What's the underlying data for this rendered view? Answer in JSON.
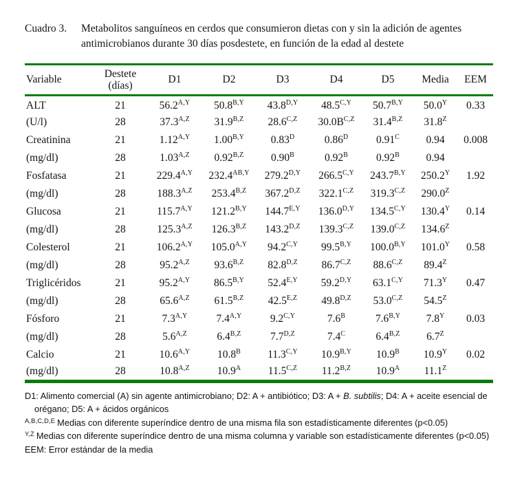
{
  "colors": {
    "rule_green": "#0b7d0b"
  },
  "title": {
    "label": "Cuadro 3.",
    "text": "Metabolitos sanguíneos en cerdos que consumieron dietas con y sin la adición de agentes antimicrobianos durante 30 días posdestete, en función de la edad al destete"
  },
  "table": {
    "headers": [
      "Variable",
      "Destete\n(días)",
      "D1",
      "D2",
      "D3",
      "D4",
      "D5",
      "Media",
      "EEM"
    ],
    "groups": [
      {
        "variable": "ALT",
        "unit": "(U/l)",
        "lines": [
          {
            "destete": "21",
            "cells": [
              {
                "v": "56.2",
                "s": "A,Y"
              },
              {
                "v": "50.8",
                "s": "B,Y"
              },
              {
                "v": "43.8",
                "s": "D,Y"
              },
              {
                "v": "48.5",
                "s": "C,Y"
              },
              {
                "v": "50.7",
                "s": "B,Y"
              },
              {
                "v": "50.0",
                "s": "Y"
              }
            ],
            "eem": "0.33"
          },
          {
            "destete": "28",
            "cells": [
              {
                "v": "37.3",
                "s": "A,Z"
              },
              {
                "v": "31.9",
                "s": "B,Z"
              },
              {
                "v": "28.6",
                "s": "C,Z"
              },
              {
                "v": "30.0B",
                "s": "C,Z"
              },
              {
                "v": "31.4",
                "s": "B,Z"
              },
              {
                "v": "31.8",
                "s": "Z"
              }
            ],
            "eem": ""
          }
        ]
      },
      {
        "variable": "Creatinina",
        "unit": "(mg/dl)",
        "lines": [
          {
            "destete": "21",
            "cells": [
              {
                "v": "1.12",
                "s": "A,Y"
              },
              {
                "v": "1.00",
                "s": "B,Y"
              },
              {
                "v": "0.83",
                "s": "D"
              },
              {
                "v": "0.86",
                "s": "D"
              },
              {
                "v": "0.91",
                "s": "C"
              },
              {
                "v": "0.94",
                "s": ""
              }
            ],
            "eem": "0.008"
          },
          {
            "destete": "28",
            "cells": [
              {
                "v": "1.03",
                "s": "A,Z"
              },
              {
                "v": "0.92",
                "s": "B,Z"
              },
              {
                "v": "0.90",
                "s": "B"
              },
              {
                "v": "0.92",
                "s": "B"
              },
              {
                "v": "0.92",
                "s": "B"
              },
              {
                "v": "0.94",
                "s": ""
              }
            ],
            "eem": ""
          }
        ]
      },
      {
        "variable": "Fosfatasa",
        "unit": "(mg/dl)",
        "lines": [
          {
            "destete": "21",
            "cells": [
              {
                "v": "229.4",
                "s": "A,Y"
              },
              {
                "v": "232.4",
                "s": "AB,Y"
              },
              {
                "v": "279.2",
                "s": "D,Y"
              },
              {
                "v": "266.5",
                "s": "C,Y"
              },
              {
                "v": "243.7",
                "s": "B,Y"
              },
              {
                "v": "250.2",
                "s": "Y"
              }
            ],
            "eem": "1.92"
          },
          {
            "destete": "28",
            "cells": [
              {
                "v": "188.3",
                "s": "A,Z"
              },
              {
                "v": "253.4",
                "s": "B,Z"
              },
              {
                "v": "367.2",
                "s": "D,Z"
              },
              {
                "v": "322.1",
                "s": "C,Z"
              },
              {
                "v": "319.3",
                "s": "C,Z"
              },
              {
                "v": "290.0",
                "s": "Z"
              }
            ],
            "eem": ""
          }
        ]
      },
      {
        "variable": "Glucosa",
        "unit": "(mg/dl)",
        "lines": [
          {
            "destete": "21",
            "cells": [
              {
                "v": "115.7",
                "s": "A,Y"
              },
              {
                "v": "121.2",
                "s": "B,Y"
              },
              {
                "v": "144.7",
                "s": "E,Y"
              },
              {
                "v": "136.0",
                "s": "D,Y"
              },
              {
                "v": "134.5",
                "s": "C,Y"
              },
              {
                "v": "130.4",
                "s": "Y"
              }
            ],
            "eem": "0.14"
          },
          {
            "destete": "28",
            "cells": [
              {
                "v": "125.3",
                "s": "A,Z"
              },
              {
                "v": "126.3",
                "s": "B,Z"
              },
              {
                "v": "143.2",
                "s": "D,Z"
              },
              {
                "v": "139.3",
                "s": "C,Z"
              },
              {
                "v": "139.0",
                "s": "C,Z"
              },
              {
                "v": "134.6",
                "s": "Z"
              }
            ],
            "eem": ""
          }
        ]
      },
      {
        "variable": "Colesterol",
        "unit": "(mg/dl)",
        "lines": [
          {
            "destete": "21",
            "cells": [
              {
                "v": "106.2",
                "s": "A,Y"
              },
              {
                "v": "105.0",
                "s": "A,Y"
              },
              {
                "v": "94.2",
                "s": "C,Y"
              },
              {
                "v": "99.5",
                "s": "B,Y"
              },
              {
                "v": "100.0",
                "s": "B,Y"
              },
              {
                "v": "101.0",
                "s": "Y"
              }
            ],
            "eem": "0.58"
          },
          {
            "destete": "28",
            "cells": [
              {
                "v": "95.2",
                "s": "A,Z"
              },
              {
                "v": "93.6",
                "s": "B,Z"
              },
              {
                "v": "82.8",
                "s": "D,Z"
              },
              {
                "v": "86.7",
                "s": "C,Z"
              },
              {
                "v": "88.6",
                "s": "C,Z"
              },
              {
                "v": "89.4",
                "s": "Z"
              }
            ],
            "eem": ""
          }
        ]
      },
      {
        "variable": "Triglicéridos",
        "unit": "(mg/dl)",
        "lines": [
          {
            "destete": "21",
            "cells": [
              {
                "v": "95.2",
                "s": "A,Y"
              },
              {
                "v": "86.5",
                "s": "B,Y"
              },
              {
                "v": "52.4",
                "s": "E,Y"
              },
              {
                "v": "59.2",
                "s": "D,Y"
              },
              {
                "v": "63.1",
                "s": "C,Y"
              },
              {
                "v": "71.3",
                "s": "Y"
              }
            ],
            "eem": "0.47"
          },
          {
            "destete": "28",
            "cells": [
              {
                "v": "65.6",
                "s": "A,Z"
              },
              {
                "v": "61.5",
                "s": "B,Z"
              },
              {
                "v": "42.5",
                "s": "E,Z"
              },
              {
                "v": "49.8",
                "s": "D,Z"
              },
              {
                "v": "53.0",
                "s": "C,Z"
              },
              {
                "v": "54.5",
                "s": "Z"
              }
            ],
            "eem": ""
          }
        ]
      },
      {
        "variable": "Fósforo",
        "unit": "(mg/dl)",
        "lines": [
          {
            "destete": "21",
            "cells": [
              {
                "v": "7.3",
                "s": "A,Y"
              },
              {
                "v": "7.4",
                "s": "A,Y"
              },
              {
                "v": "9.2",
                "s": "C,Y"
              },
              {
                "v": "7.6",
                "s": "B"
              },
              {
                "v": "7.6",
                "s": "B,Y"
              },
              {
                "v": "7.8",
                "s": "Y"
              }
            ],
            "eem": "0.03"
          },
          {
            "destete": "28",
            "cells": [
              {
                "v": "5.6",
                "s": "A,Z"
              },
              {
                "v": "6.4",
                "s": "B,Z"
              },
              {
                "v": "7.7",
                "s": "D,Z"
              },
              {
                "v": "7.4",
                "s": "C"
              },
              {
                "v": "6.4",
                "s": "B,Z"
              },
              {
                "v": "6.7",
                "s": "Z"
              }
            ],
            "eem": ""
          }
        ]
      },
      {
        "variable": "Calcio",
        "unit": "(mg/dl)",
        "lines": [
          {
            "destete": "21",
            "cells": [
              {
                "v": "10.6",
                "s": "A,Y"
              },
              {
                "v": "10.8",
                "s": "B"
              },
              {
                "v": "11.3",
                "s": "C,Y"
              },
              {
                "v": "10.9",
                "s": "B,Y"
              },
              {
                "v": "10.9",
                "s": "B"
              },
              {
                "v": "10.9",
                "s": "Y"
              }
            ],
            "eem": "0.02"
          },
          {
            "destete": "28",
            "cells": [
              {
                "v": "10.8",
                "s": "A,Z"
              },
              {
                "v": "10.9",
                "s": "A"
              },
              {
                "v": "11.5",
                "s": "C,Z"
              },
              {
                "v": "11.2",
                "s": "B,Z"
              },
              {
                "v": "10.9",
                "s": "A"
              },
              {
                "v": "11.1",
                "s": "Z"
              }
            ],
            "eem": ""
          }
        ]
      }
    ]
  },
  "footnotes": {
    "diets": {
      "pre": "D1: Alimento comercial (A) sin agente antimicrobiano; D2: A + antibiótico; D3: A + ",
      "italic": "B. subtilis",
      "post": "; D4: A + aceite esencial de orégano; D5: A + ácidos orgánicos"
    },
    "row_sup": {
      "marker": "A,B,C,D,E",
      "text": "Medias con diferente superíndice dentro de una misma fila son estadísticamente diferentes (p<0.05)"
    },
    "col_sup": {
      "marker": "Y,Z",
      "text": "Medias con diferente superíndice dentro de una misma columna y variable son estadísticamente diferentes (p<0.05)"
    },
    "eem": "EEM: Error estándar de la media"
  }
}
